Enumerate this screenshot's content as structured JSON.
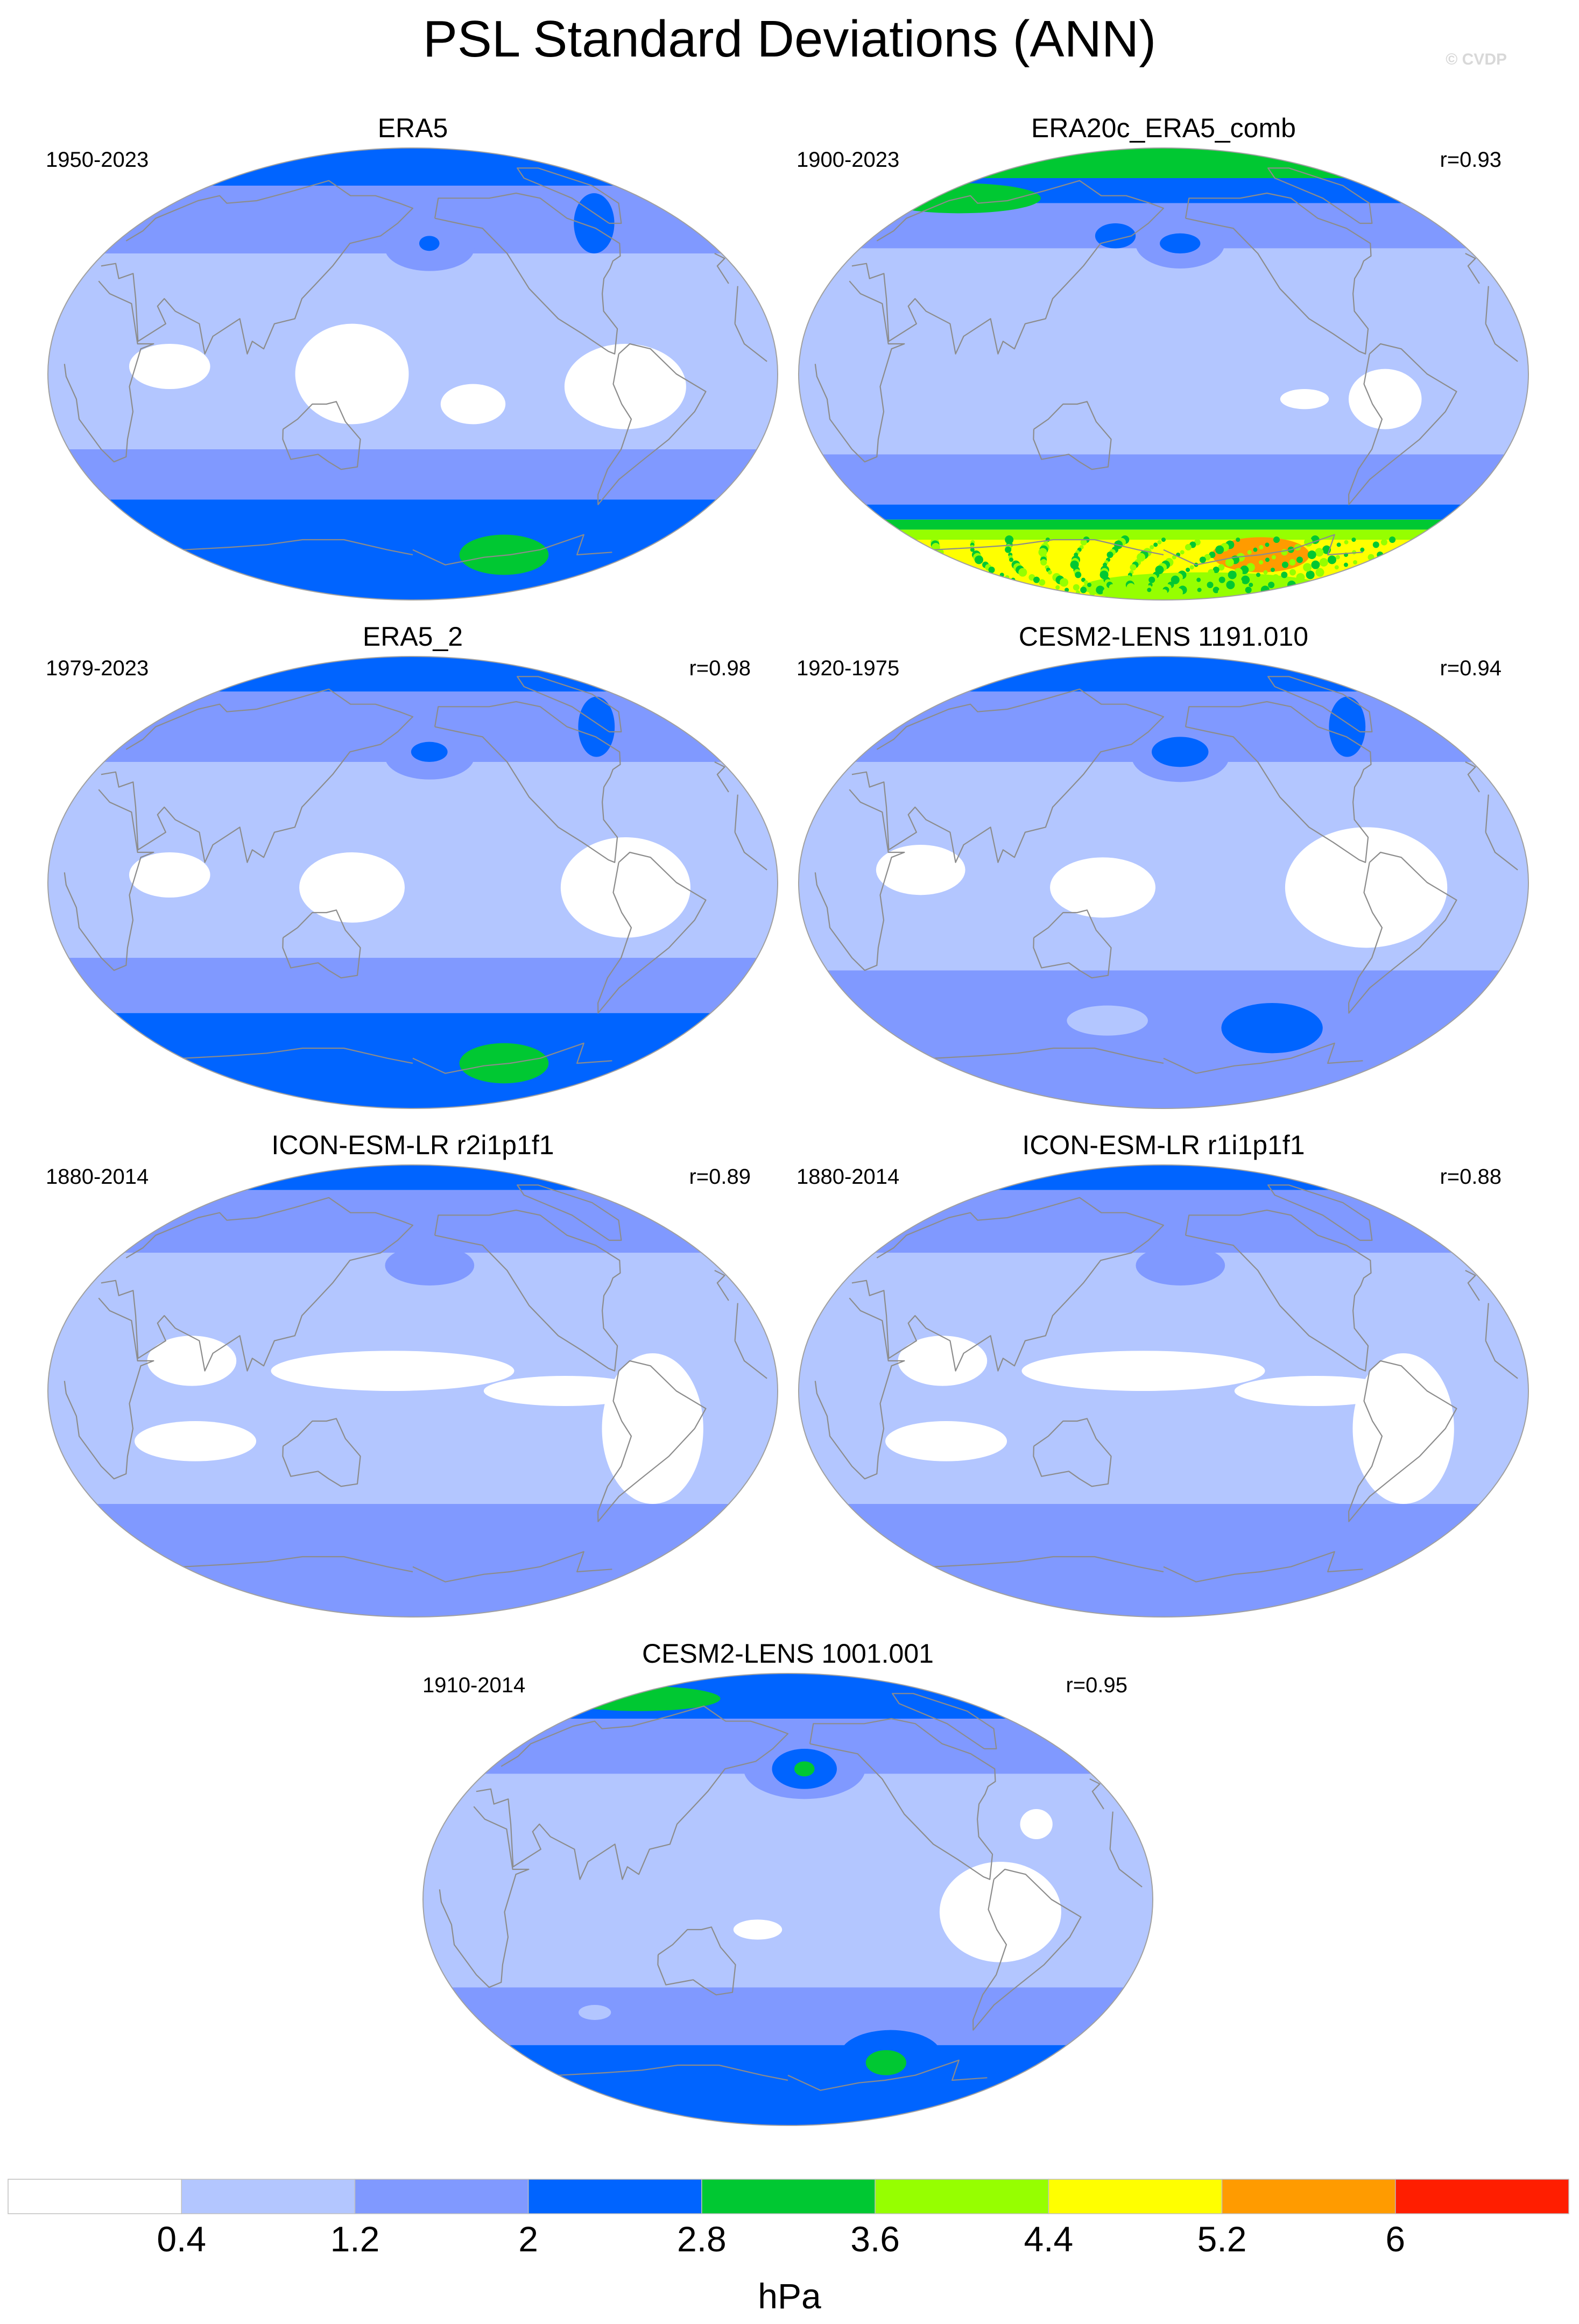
{
  "title": "PSL Standard Deviations (ANN)",
  "credit": "© CVDP",
  "units": "hPa",
  "colorbar": {
    "colors": [
      "#ffffff",
      "#b3c6ff",
      "#8099ff",
      "#0064ff",
      "#00c832",
      "#96ff00",
      "#ffff00",
      "#ff9b00",
      "#ff1e00"
    ],
    "labels": [
      "0.4",
      "1.2",
      "2",
      "2.8",
      "3.6",
      "4.4",
      "5.2",
      "6"
    ]
  },
  "colors": {
    "land_outline": "#8c8c8c",
    "frame": "#a0a0a0"
  },
  "panels": [
    {
      "id": "era5",
      "title": "ERA5",
      "years": "1950-2023",
      "r": "",
      "stipple": false,
      "bands": [
        {
          "from": 90,
          "to": 75,
          "level": 3
        },
        {
          "from": 75,
          "to": 48,
          "level": 2
        },
        {
          "from": 48,
          "to": -30,
          "level": 1
        },
        {
          "from": -30,
          "to": -50,
          "level": 2
        },
        {
          "from": -50,
          "to": -90,
          "level": 3
        }
      ],
      "blobs": [
        {
          "lon": -170,
          "lat": 50,
          "rlon": 22,
          "rlat": 9,
          "level": 2
        },
        {
          "lon": -170,
          "lat": 52,
          "rlon": 5,
          "rlat": 3,
          "level": 3
        },
        {
          "lon": -60,
          "lat": 60,
          "rlon": 10,
          "rlat": 12,
          "level": 3
        },
        {
          "lon": 150,
          "lat": 0,
          "rlon": 28,
          "rlat": 20,
          "level": 0
        },
        {
          "lon": -150,
          "lat": -12,
          "rlon": 16,
          "rlat": 8,
          "level": 0
        },
        {
          "lon": -75,
          "lat": -5,
          "rlon": 30,
          "rlat": 17,
          "level": 0
        },
        {
          "lon": 60,
          "lat": 3,
          "rlon": 20,
          "rlat": 9,
          "level": 0
        },
        {
          "lon": -105,
          "lat": -72,
          "rlon": 22,
          "rlat": 8,
          "level": 4
        }
      ]
    },
    {
      "id": "era20c",
      "title": "ERA20c_ERA5_comb",
      "years": "1900-2023",
      "r": "r=0.93",
      "stipple": true,
      "bands": [
        {
          "from": 90,
          "to": 78,
          "level": 4
        },
        {
          "from": 78,
          "to": 68,
          "level": 3
        },
        {
          "from": 68,
          "to": 50,
          "level": 2
        },
        {
          "from": 50,
          "to": -32,
          "level": 1
        },
        {
          "from": -32,
          "to": -52,
          "level": 2
        },
        {
          "from": -52,
          "to": -58,
          "level": 3
        },
        {
          "from": -58,
          "to": -62,
          "level": 4
        },
        {
          "from": -62,
          "to": -66,
          "level": 5
        },
        {
          "from": -66,
          "to": -90,
          "level": 6
        }
      ],
      "blobs": [
        {
          "lon": -170,
          "lat": 52,
          "rlon": 22,
          "rlat": 10,
          "level": 2
        },
        {
          "lon": -170,
          "lat": 52,
          "rlon": 10,
          "rlat": 4,
          "level": 3
        },
        {
          "lon": 20,
          "lat": 70,
          "rlon": 40,
          "rlat": 6,
          "level": 4
        },
        {
          "lon": -110,
          "lat": -10,
          "rlon": 12,
          "rlat": 4,
          "level": 0
        },
        {
          "lon": -70,
          "lat": -10,
          "rlon": 18,
          "rlat": 12,
          "level": 0
        },
        {
          "lon": 150,
          "lat": 55,
          "rlon": 10,
          "rlat": 5,
          "level": 3
        },
        {
          "lon": -100,
          "lat": -72,
          "rlon": 24,
          "rlat": 7,
          "level": 7
        },
        {
          "lon": -120,
          "lat": -85,
          "rlon": 60,
          "rlat": 6,
          "level": 5
        }
      ]
    },
    {
      "id": "era5_2",
      "title": "ERA5_2",
      "years": "1979-2023",
      "r": "r=0.98",
      "stipple": false,
      "bands": [
        {
          "from": 90,
          "to": 76,
          "level": 3
        },
        {
          "from": 76,
          "to": 48,
          "level": 2
        },
        {
          "from": 48,
          "to": -30,
          "level": 1
        },
        {
          "from": -30,
          "to": -52,
          "level": 2
        },
        {
          "from": -52,
          "to": -90,
          "level": 3
        }
      ],
      "blobs": [
        {
          "lon": -170,
          "lat": 50,
          "rlon": 22,
          "rlat": 9,
          "level": 2
        },
        {
          "lon": -170,
          "lat": 52,
          "rlon": 9,
          "rlat": 4,
          "level": 3
        },
        {
          "lon": -55,
          "lat": 62,
          "rlon": 9,
          "rlat": 12,
          "level": 3
        },
        {
          "lon": 150,
          "lat": -2,
          "rlon": 26,
          "rlat": 14,
          "level": 0
        },
        {
          "lon": -75,
          "lat": -2,
          "rlon": 32,
          "rlat": 20,
          "level": 0
        },
        {
          "lon": 60,
          "lat": 3,
          "rlon": 20,
          "rlat": 9,
          "level": 0
        },
        {
          "lon": -105,
          "lat": -72,
          "rlon": 22,
          "rlat": 8,
          "level": 4
        }
      ]
    },
    {
      "id": "cesm2_1191",
      "title": "CESM2-LENS 1191.010",
      "years": "1920-1975",
      "r": "r=0.94",
      "stipple": false,
      "bands": [
        {
          "from": 90,
          "to": 76,
          "level": 3
        },
        {
          "from": 76,
          "to": 48,
          "level": 2
        },
        {
          "from": 48,
          "to": -35,
          "level": 1
        },
        {
          "from": -35,
          "to": -90,
          "level": 2
        }
      ],
      "blobs": [
        {
          "lon": -170,
          "lat": 50,
          "rlon": 24,
          "rlat": 10,
          "level": 2
        },
        {
          "lon": -170,
          "lat": 52,
          "rlon": 14,
          "rlat": 6,
          "level": 3
        },
        {
          "lon": -55,
          "lat": 62,
          "rlon": 9,
          "rlat": 12,
          "level": 3
        },
        {
          "lon": 150,
          "lat": -2,
          "rlon": 26,
          "rlat": 12,
          "level": 0
        },
        {
          "lon": -80,
          "lat": -2,
          "rlon": 40,
          "rlat": 24,
          "level": 0
        },
        {
          "lon": 60,
          "lat": 5,
          "rlon": 22,
          "rlat": 10,
          "level": 0
        },
        {
          "lon": -110,
          "lat": -58,
          "rlon": 25,
          "rlat": 10,
          "level": 3
        },
        {
          "lon": 145,
          "lat": -55,
          "rlon": 20,
          "rlat": 6,
          "level": 1
        }
      ]
    },
    {
      "id": "icon_r2",
      "title": "ICON-ESM-LR r2i1p1f1",
      "years": "1880-2014",
      "r": "r=0.89",
      "stipple": false,
      "bands": [
        {
          "from": 90,
          "to": 80,
          "level": 3
        },
        {
          "from": 80,
          "to": 55,
          "level": 2
        },
        {
          "from": 55,
          "to": -45,
          "level": 1
        },
        {
          "from": -45,
          "to": -90,
          "level": 2
        }
      ],
      "blobs": [
        {
          "lon": -170,
          "lat": 50,
          "rlon": 22,
          "rlat": 8,
          "level": 2
        },
        {
          "lon": 170,
          "lat": 8,
          "rlon": 60,
          "rlat": 8,
          "level": 0
        },
        {
          "lon": -105,
          "lat": 0,
          "rlon": 40,
          "rlat": 6,
          "level": 0
        },
        {
          "lon": -60,
          "lat": -15,
          "rlon": 25,
          "rlat": 30,
          "level": 0
        },
        {
          "lon": 70,
          "lat": 12,
          "rlon": 22,
          "rlat": 10,
          "level": 0
        },
        {
          "lon": 70,
          "lat": -20,
          "rlon": 30,
          "rlat": 8,
          "level": 0
        }
      ]
    },
    {
      "id": "icon_r1",
      "title": "ICON-ESM-LR r1i1p1f1",
      "years": "1880-2014",
      "r": "r=0.88",
      "stipple": false,
      "bands": [
        {
          "from": 90,
          "to": 80,
          "level": 3
        },
        {
          "from": 80,
          "to": 55,
          "level": 2
        },
        {
          "from": 55,
          "to": -45,
          "level": 1
        },
        {
          "from": -45,
          "to": -90,
          "level": 2
        }
      ],
      "blobs": [
        {
          "lon": -170,
          "lat": 50,
          "rlon": 22,
          "rlat": 8,
          "level": 2
        },
        {
          "lon": 170,
          "lat": 8,
          "rlon": 60,
          "rlat": 8,
          "level": 0
        },
        {
          "lon": -105,
          "lat": 0,
          "rlon": 40,
          "rlat": 6,
          "level": 0
        },
        {
          "lon": -60,
          "lat": -15,
          "rlon": 25,
          "rlat": 30,
          "level": 0
        },
        {
          "lon": 70,
          "lat": 12,
          "rlon": 22,
          "rlat": 10,
          "level": 0
        },
        {
          "lon": 70,
          "lat": -20,
          "rlon": 30,
          "rlat": 8,
          "level": 0
        }
      ]
    },
    {
      "id": "cesm2_1001",
      "title": "CESM2-LENS 1001.001",
      "years": "1910-2014",
      "r": "r=0.95",
      "stipple": false,
      "bands": [
        {
          "from": 90,
          "to": 72,
          "level": 3
        },
        {
          "from": 72,
          "to": 50,
          "level": 2
        },
        {
          "from": 50,
          "to": -35,
          "level": 1
        },
        {
          "from": -35,
          "to": -58,
          "level": 2
        },
        {
          "from": -58,
          "to": -90,
          "level": 3
        }
      ],
      "blobs": [
        {
          "lon": -170,
          "lat": 52,
          "rlon": 30,
          "rlat": 12,
          "level": 2
        },
        {
          "lon": -170,
          "lat": 52,
          "rlon": 16,
          "rlat": 8,
          "level": 3
        },
        {
          "lon": -170,
          "lat": 52,
          "rlon": 5,
          "rlat": 3,
          "level": 4
        },
        {
          "lon": 20,
          "lat": 80,
          "rlon": 40,
          "rlat": 5,
          "level": 4
        },
        {
          "lon": -50,
          "lat": 30,
          "rlon": 8,
          "rlat": 6,
          "level": 0
        },
        {
          "lon": -75,
          "lat": -5,
          "rlon": 30,
          "rlat": 20,
          "level": 0
        },
        {
          "lon": 165,
          "lat": -12,
          "rlon": 12,
          "rlat": 4,
          "level": 0
        },
        {
          "lon": 70,
          "lat": -45,
          "rlon": 8,
          "rlat": 3,
          "level": 1
        },
        {
          "lon": -110,
          "lat": -62,
          "rlon": 25,
          "rlat": 10,
          "level": 3
        },
        {
          "lon": -110,
          "lat": -65,
          "rlon": 10,
          "rlat": 5,
          "level": 4
        }
      ]
    }
  ]
}
